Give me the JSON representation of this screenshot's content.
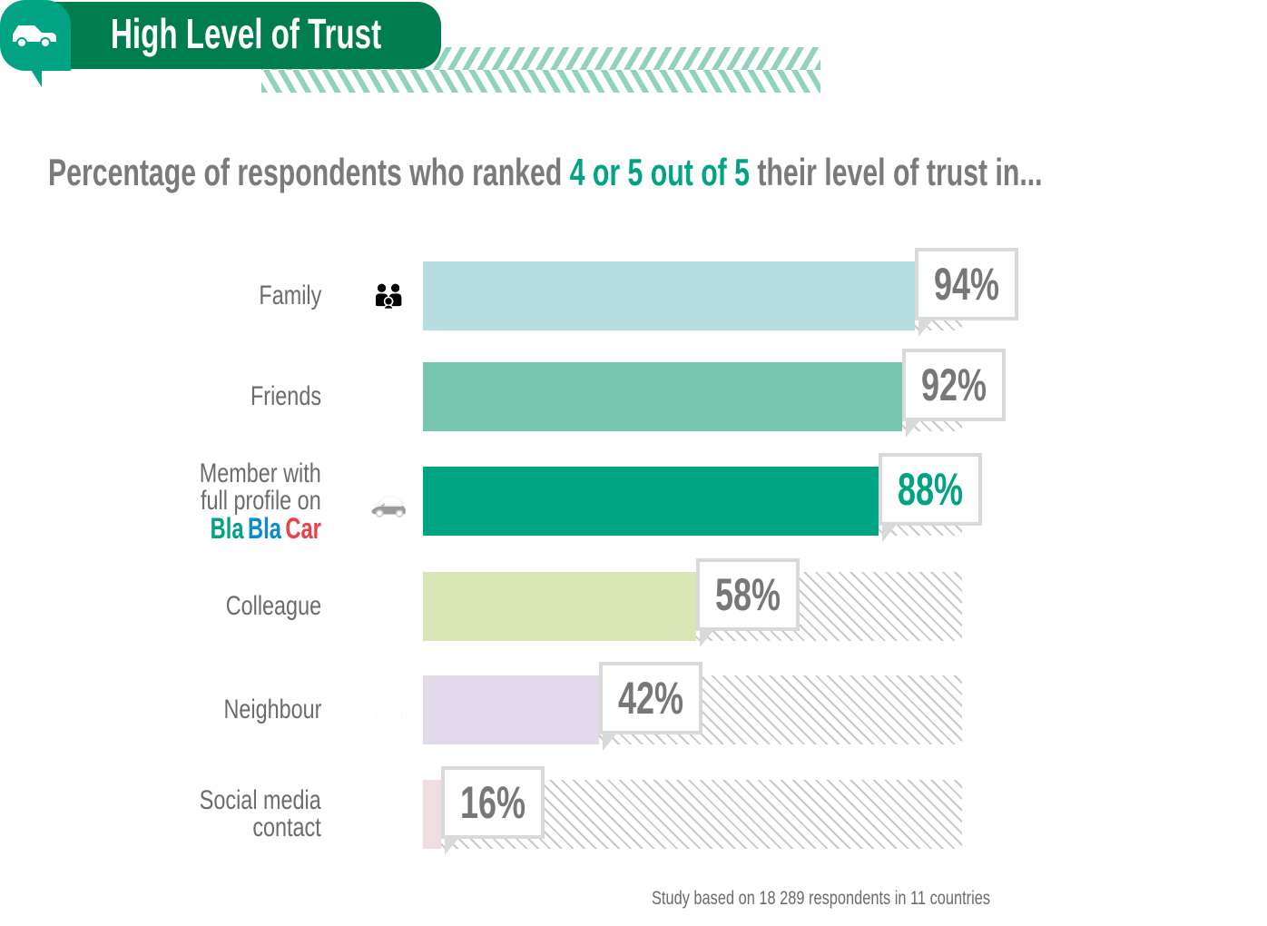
{
  "header": {
    "title": "High Level of Trust",
    "icon": "car-icon"
  },
  "subtitle": {
    "before": "Percentage of respondents who ranked ",
    "highlight": "4 or 5 out of 5",
    "after": " their level of trust in..."
  },
  "brand": {
    "parts": [
      "Bla",
      "Bla",
      "Car"
    ],
    "colors": [
      "#00a383",
      "#0a8bd0",
      "#e8414a"
    ]
  },
  "footnote": "Study based on 18 289 respondents in 11 countries",
  "chart_data": {
    "type": "bar",
    "orientation": "horizontal",
    "xlim": [
      0,
      100
    ],
    "categories": [
      "Family",
      "Friends",
      "Member with full profile on BlaBlaCar",
      "Colleague",
      "Neighbour",
      "Social media contact"
    ],
    "label_lines": [
      [
        "Family"
      ],
      [
        "Friends"
      ],
      [
        "Member with",
        "full profile on"
      ],
      [
        "Colleague"
      ],
      [
        "Neighbour"
      ],
      [
        "Social media",
        "contact"
      ]
    ],
    "values": [
      94,
      92,
      88,
      58,
      42,
      16
    ],
    "value_labels": [
      "94%",
      "92%",
      "88%",
      "58%",
      "42%",
      "16%"
    ],
    "icons": [
      "family-icon",
      "friends-icon",
      "member-car-icon",
      "colleague-icon",
      "neighbour-houses-icon",
      "social-media-icon"
    ],
    "icon_glyphs": [
      "👪",
      "👥",
      "🚗",
      "👥",
      "🏠",
      "☺"
    ],
    "bar_colors": [
      "#b6dee0",
      "#76c5ae",
      "#00a584",
      "#d9e6b5",
      "#e2d9ea",
      "#f0dde0"
    ],
    "icon_colors": [
      "#9cc3c4",
      "#5fa894",
      "#009678",
      "#b8c89a",
      "#c2b8cb",
      "#d4bcc2"
    ],
    "label_colors": [
      "#777777",
      "#777777",
      "#00a383",
      "#777777",
      "#777777",
      "#777777"
    ]
  }
}
